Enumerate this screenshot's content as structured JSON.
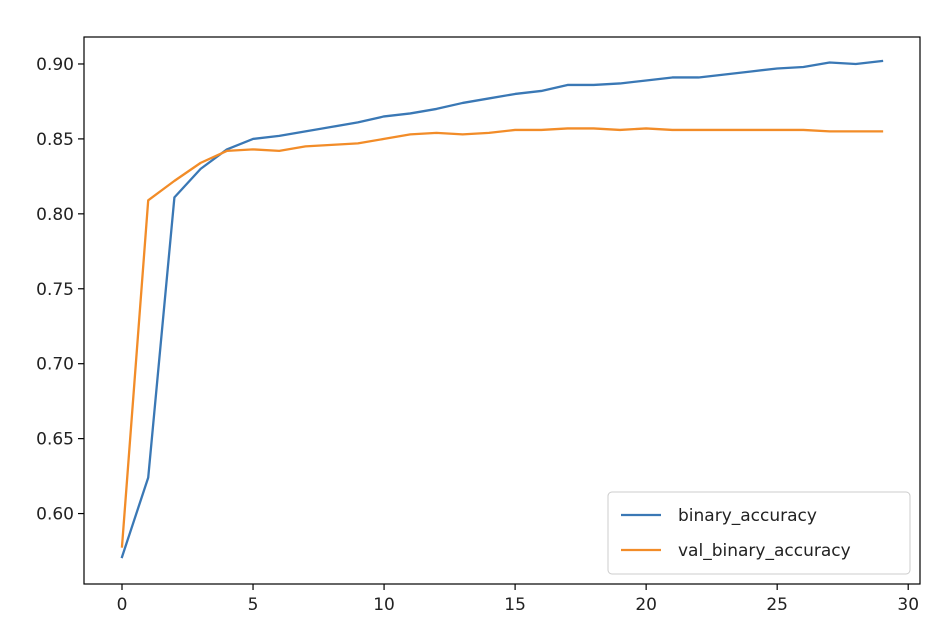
{
  "chart_data": {
    "type": "line",
    "title": "",
    "xlabel": "",
    "ylabel": "",
    "xlim": [
      -1.45,
      30.45
    ],
    "ylim": [
      0.553,
      0.918
    ],
    "x_ticks": [
      0,
      5,
      10,
      15,
      20,
      25,
      30
    ],
    "y_ticks": [
      0.6,
      0.65,
      0.7,
      0.75,
      0.8,
      0.85,
      0.9
    ],
    "x_tick_labels": [
      "0",
      "5",
      "10",
      "15",
      "20",
      "25",
      "30"
    ],
    "y_tick_labels": [
      "0.60",
      "0.65",
      "0.70",
      "0.75",
      "0.80",
      "0.85",
      "0.90"
    ],
    "grid": false,
    "legend_position": "lower-right",
    "x": [
      0,
      1,
      2,
      3,
      4,
      5,
      6,
      7,
      8,
      9,
      10,
      11,
      12,
      13,
      14,
      15,
      16,
      17,
      18,
      19,
      20,
      21,
      22,
      23,
      24,
      25,
      26,
      27,
      28,
      29
    ],
    "series": [
      {
        "name": "binary_accuracy",
        "color": "#3a78b5",
        "values": [
          0.571,
          0.624,
          0.811,
          0.83,
          0.843,
          0.85,
          0.852,
          0.855,
          0.858,
          0.861,
          0.865,
          0.867,
          0.87,
          0.874,
          0.877,
          0.88,
          0.882,
          0.886,
          0.886,
          0.887,
          0.889,
          0.891,
          0.891,
          0.893,
          0.895,
          0.897,
          0.898,
          0.901,
          0.9,
          0.902
        ]
      },
      {
        "name": "val_binary_accuracy",
        "color": "#f28c28",
        "values": [
          0.578,
          0.809,
          0.822,
          0.834,
          0.842,
          0.843,
          0.842,
          0.845,
          0.846,
          0.847,
          0.85,
          0.853,
          0.854,
          0.853,
          0.854,
          0.856,
          0.856,
          0.857,
          0.857,
          0.856,
          0.857,
          0.856,
          0.856,
          0.856,
          0.856,
          0.856,
          0.856,
          0.855,
          0.855,
          0.855
        ]
      }
    ]
  }
}
